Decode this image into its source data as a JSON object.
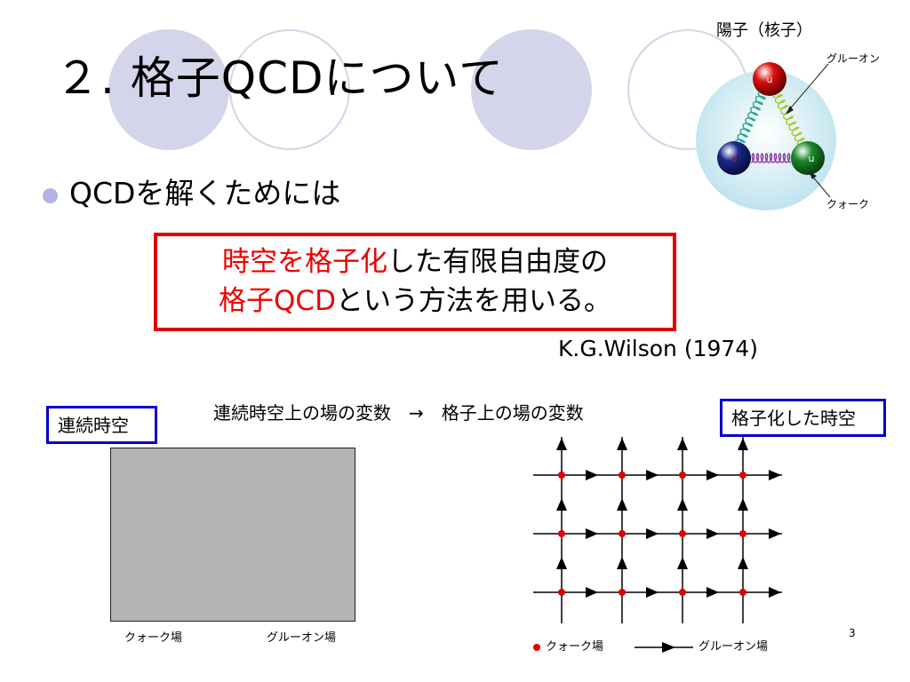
{
  "slide": {
    "title": "２. 格子QCDについて",
    "bullet": "QCDを解くためには",
    "box_line1_red": "時空を格子化",
    "box_line1_black": "した有限自由度の",
    "box_line2_red": "格子QCD",
    "box_line2_black": "という方法を用いる。",
    "citation": "K.G.Wilson (1974)",
    "conversion": "連続時空上の場の変数　→　格子上の場の変数",
    "continuum_label": "連続時空",
    "lattice_label": "格子化した時空",
    "continuum_quark": "クォーク場",
    "continuum_gluon": "グルーオン場",
    "legend_quark": "クォーク場",
    "legend_gluon": "グルーオン場",
    "page_number": "3"
  },
  "proton": {
    "title": "陽子（核子）",
    "gluon_label": "グルーオン",
    "quark_label": "クォーク",
    "quarks": [
      {
        "flavor": "u",
        "color": "#dd1111"
      },
      {
        "flavor": "d",
        "color": "#1a2b8c"
      },
      {
        "flavor": "u",
        "color": "#1d8a2a"
      }
    ]
  },
  "colors": {
    "accent_circle": "#d4d4ea",
    "highlight": "#ee0000",
    "label_border": "#0000cc",
    "quark_dot": "#e00000"
  }
}
